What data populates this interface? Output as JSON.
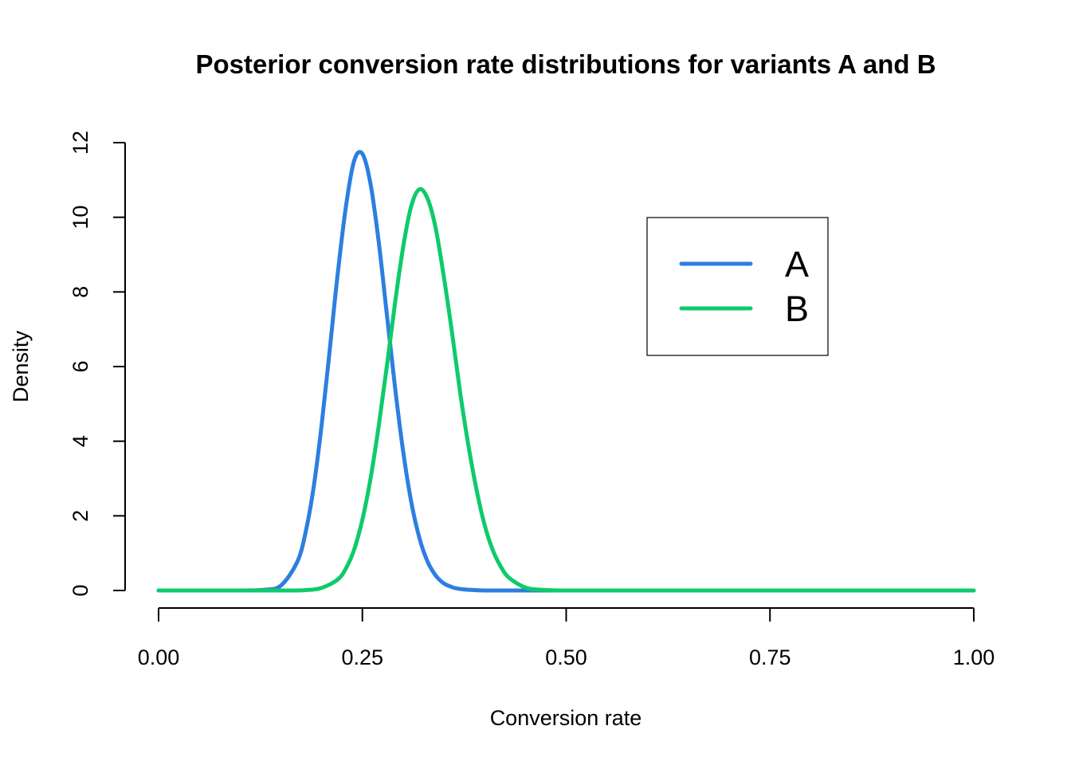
{
  "chart_data": {
    "type": "line",
    "title": "Posterior conversion rate distributions for variants A and B",
    "xlabel": "Conversion rate",
    "ylabel": "Density",
    "xlim": [
      0,
      1
    ],
    "ylim": [
      0,
      12
    ],
    "x_ticks": [
      0,
      0.25,
      0.5,
      0.75,
      1
    ],
    "x_tick_labels": [
      "0.00",
      "0.25",
      "0.50",
      "0.75",
      "1.00"
    ],
    "y_ticks": [
      0,
      2,
      4,
      6,
      8,
      10,
      12
    ],
    "y_tick_labels": [
      "0",
      "2",
      "4",
      "6",
      "8",
      "10",
      "12"
    ],
    "grid": false,
    "legend": {
      "position": "top-right",
      "boxed": true
    },
    "series": [
      {
        "name": "A",
        "color": "#2c7fe0",
        "x": [
          0,
          0.1,
          0.13,
          0.15,
          0.17,
          0.18,
          0.19,
          0.2,
          0.21,
          0.22,
          0.23,
          0.24,
          0.25,
          0.26,
          0.27,
          0.28,
          0.29,
          0.3,
          0.31,
          0.32,
          0.33,
          0.34,
          0.35,
          0.36,
          0.37,
          0.38,
          0.4,
          0.43,
          0.47,
          0.6,
          1.0
        ],
        "y": [
          0,
          0.0,
          0.02,
          0.13,
          0.76,
          1.52,
          2.74,
          4.43,
          6.45,
          8.54,
          10.32,
          11.52,
          11.7,
          10.89,
          9.35,
          7.41,
          5.45,
          3.73,
          2.37,
          1.4,
          0.77,
          0.4,
          0.19,
          0.09,
          0.04,
          0.02,
          0.0,
          0.0,
          0.0,
          0.0,
          0.0
        ]
      },
      {
        "name": "B",
        "color": "#0ecb6a",
        "x": [
          0,
          0.15,
          0.18,
          0.2,
          0.22,
          0.23,
          0.24,
          0.25,
          0.26,
          0.27,
          0.28,
          0.29,
          0.3,
          0.31,
          0.32,
          0.33,
          0.34,
          0.35,
          0.36,
          0.37,
          0.38,
          0.39,
          0.4,
          0.41,
          0.42,
          0.43,
          0.45,
          0.47,
          0.5,
          0.6,
          1.0
        ],
        "y": [
          0,
          0.0,
          0.01,
          0.07,
          0.3,
          0.6,
          1.1,
          1.9,
          3.0,
          4.4,
          6.0,
          7.7,
          9.2,
          10.3,
          10.75,
          10.5,
          9.7,
          8.4,
          6.9,
          5.3,
          3.9,
          2.7,
          1.75,
          1.08,
          0.63,
          0.34,
          0.08,
          0.02,
          0.0,
          0.0,
          0.0
        ]
      }
    ]
  }
}
